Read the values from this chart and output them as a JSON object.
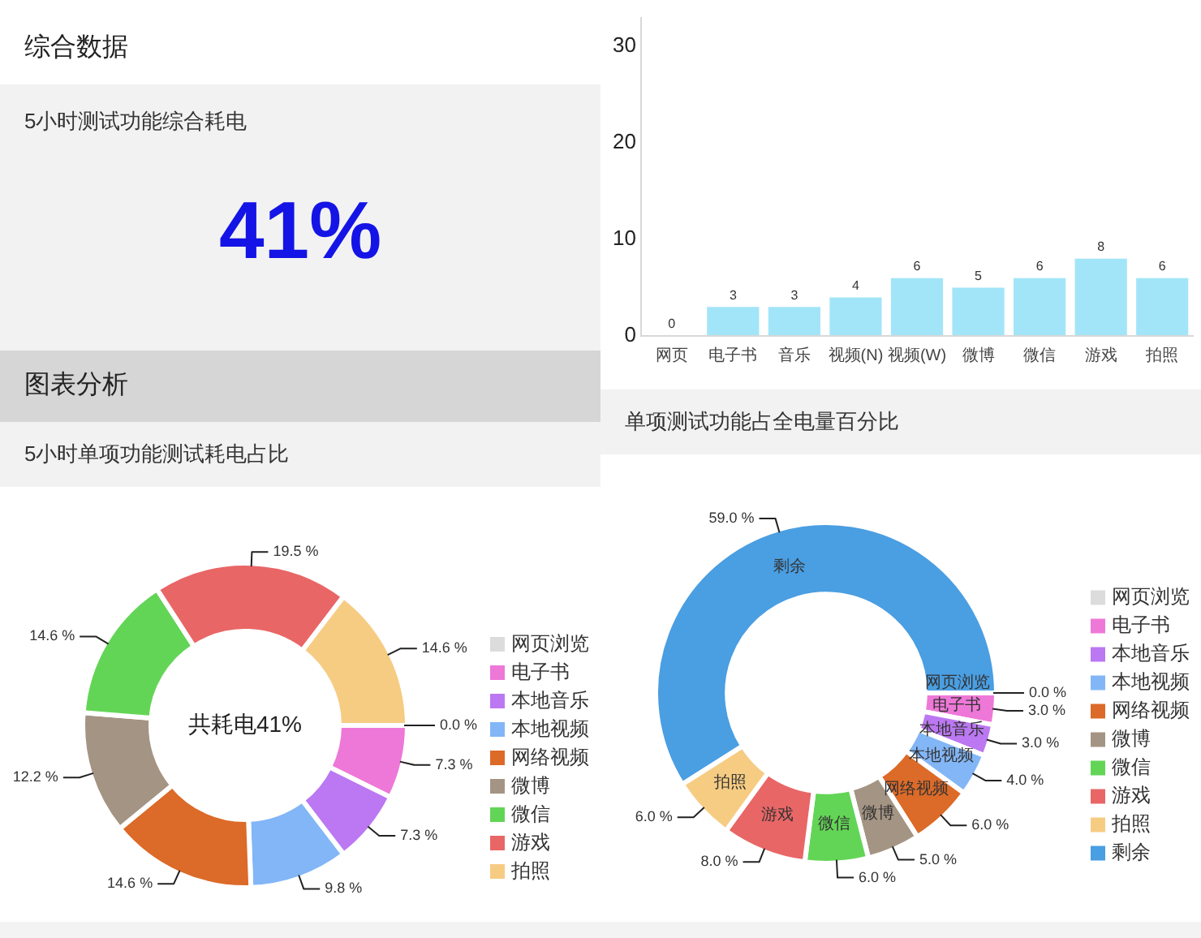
{
  "chart_data": [
    {
      "type": "other",
      "title": "综合数据",
      "subtitle": "5小时测试功能综合耗电",
      "annotations": [
        "41%"
      ]
    },
    {
      "type": "bar",
      "categories": [
        "网页",
        "电子书",
        "音乐",
        "视频(N)",
        "视频(W)",
        "微博",
        "微信",
        "游戏",
        "拍照"
      ],
      "values": [
        0,
        3,
        3,
        4,
        6,
        5,
        6,
        8,
        6
      ],
      "color": "#a3e5f8",
      "ylim": [
        0,
        33
      ],
      "yticks": [
        0,
        10,
        20,
        30
      ],
      "data_labels": true
    },
    {
      "type": "donut",
      "title": "图表分析",
      "subtitle": "5小时单项功能测试耗电占比",
      "categories": [
        "网页浏览",
        "电子书",
        "本地音乐",
        "本地视频",
        "网络视频",
        "微博",
        "微信",
        "游戏",
        "拍照"
      ],
      "values": [
        0.0,
        7.3,
        7.3,
        9.8,
        14.6,
        12.2,
        14.6,
        19.5,
        14.6
      ],
      "colors": [
        "#dcdcdc",
        "#ee78d8",
        "#bb78f2",
        "#82b6f6",
        "#dc6a28",
        "#a49483",
        "#63d556",
        "#e96666",
        "#f6cc83"
      ],
      "value_labels": [
        "0.0 %",
        "7.3 %",
        "7.3 %",
        "9.8 %",
        "14.6 %",
        "12.2 %",
        "14.6 %",
        "19.5 %",
        "14.6 %"
      ],
      "annotations": [
        "共耗电41%"
      ],
      "legend": "right"
    },
    {
      "type": "donut",
      "title": "单项测试功能占全电量百分比",
      "categories": [
        "网页浏览",
        "电子书",
        "本地音乐",
        "本地视频",
        "网络视频",
        "微博",
        "微信",
        "游戏",
        "拍照",
        "剩余"
      ],
      "values": [
        0.0,
        3.0,
        3.0,
        4.0,
        6.0,
        5.0,
        6.0,
        8.0,
        6.0,
        59.0
      ],
      "colors": [
        "#dcdcdc",
        "#ee78d8",
        "#bb78f2",
        "#82b6f6",
        "#dc6a28",
        "#a49483",
        "#63d556",
        "#e96666",
        "#f6cc83",
        "#4a9ee2"
      ],
      "value_labels": [
        "0.0 %",
        "3.0 %",
        "3.0 %",
        "4.0 %",
        "6.0 %",
        "5.0 %",
        "6.0 %",
        "8.0 %",
        "6.0 %",
        "59.0 %"
      ],
      "legend": "right"
    }
  ]
}
